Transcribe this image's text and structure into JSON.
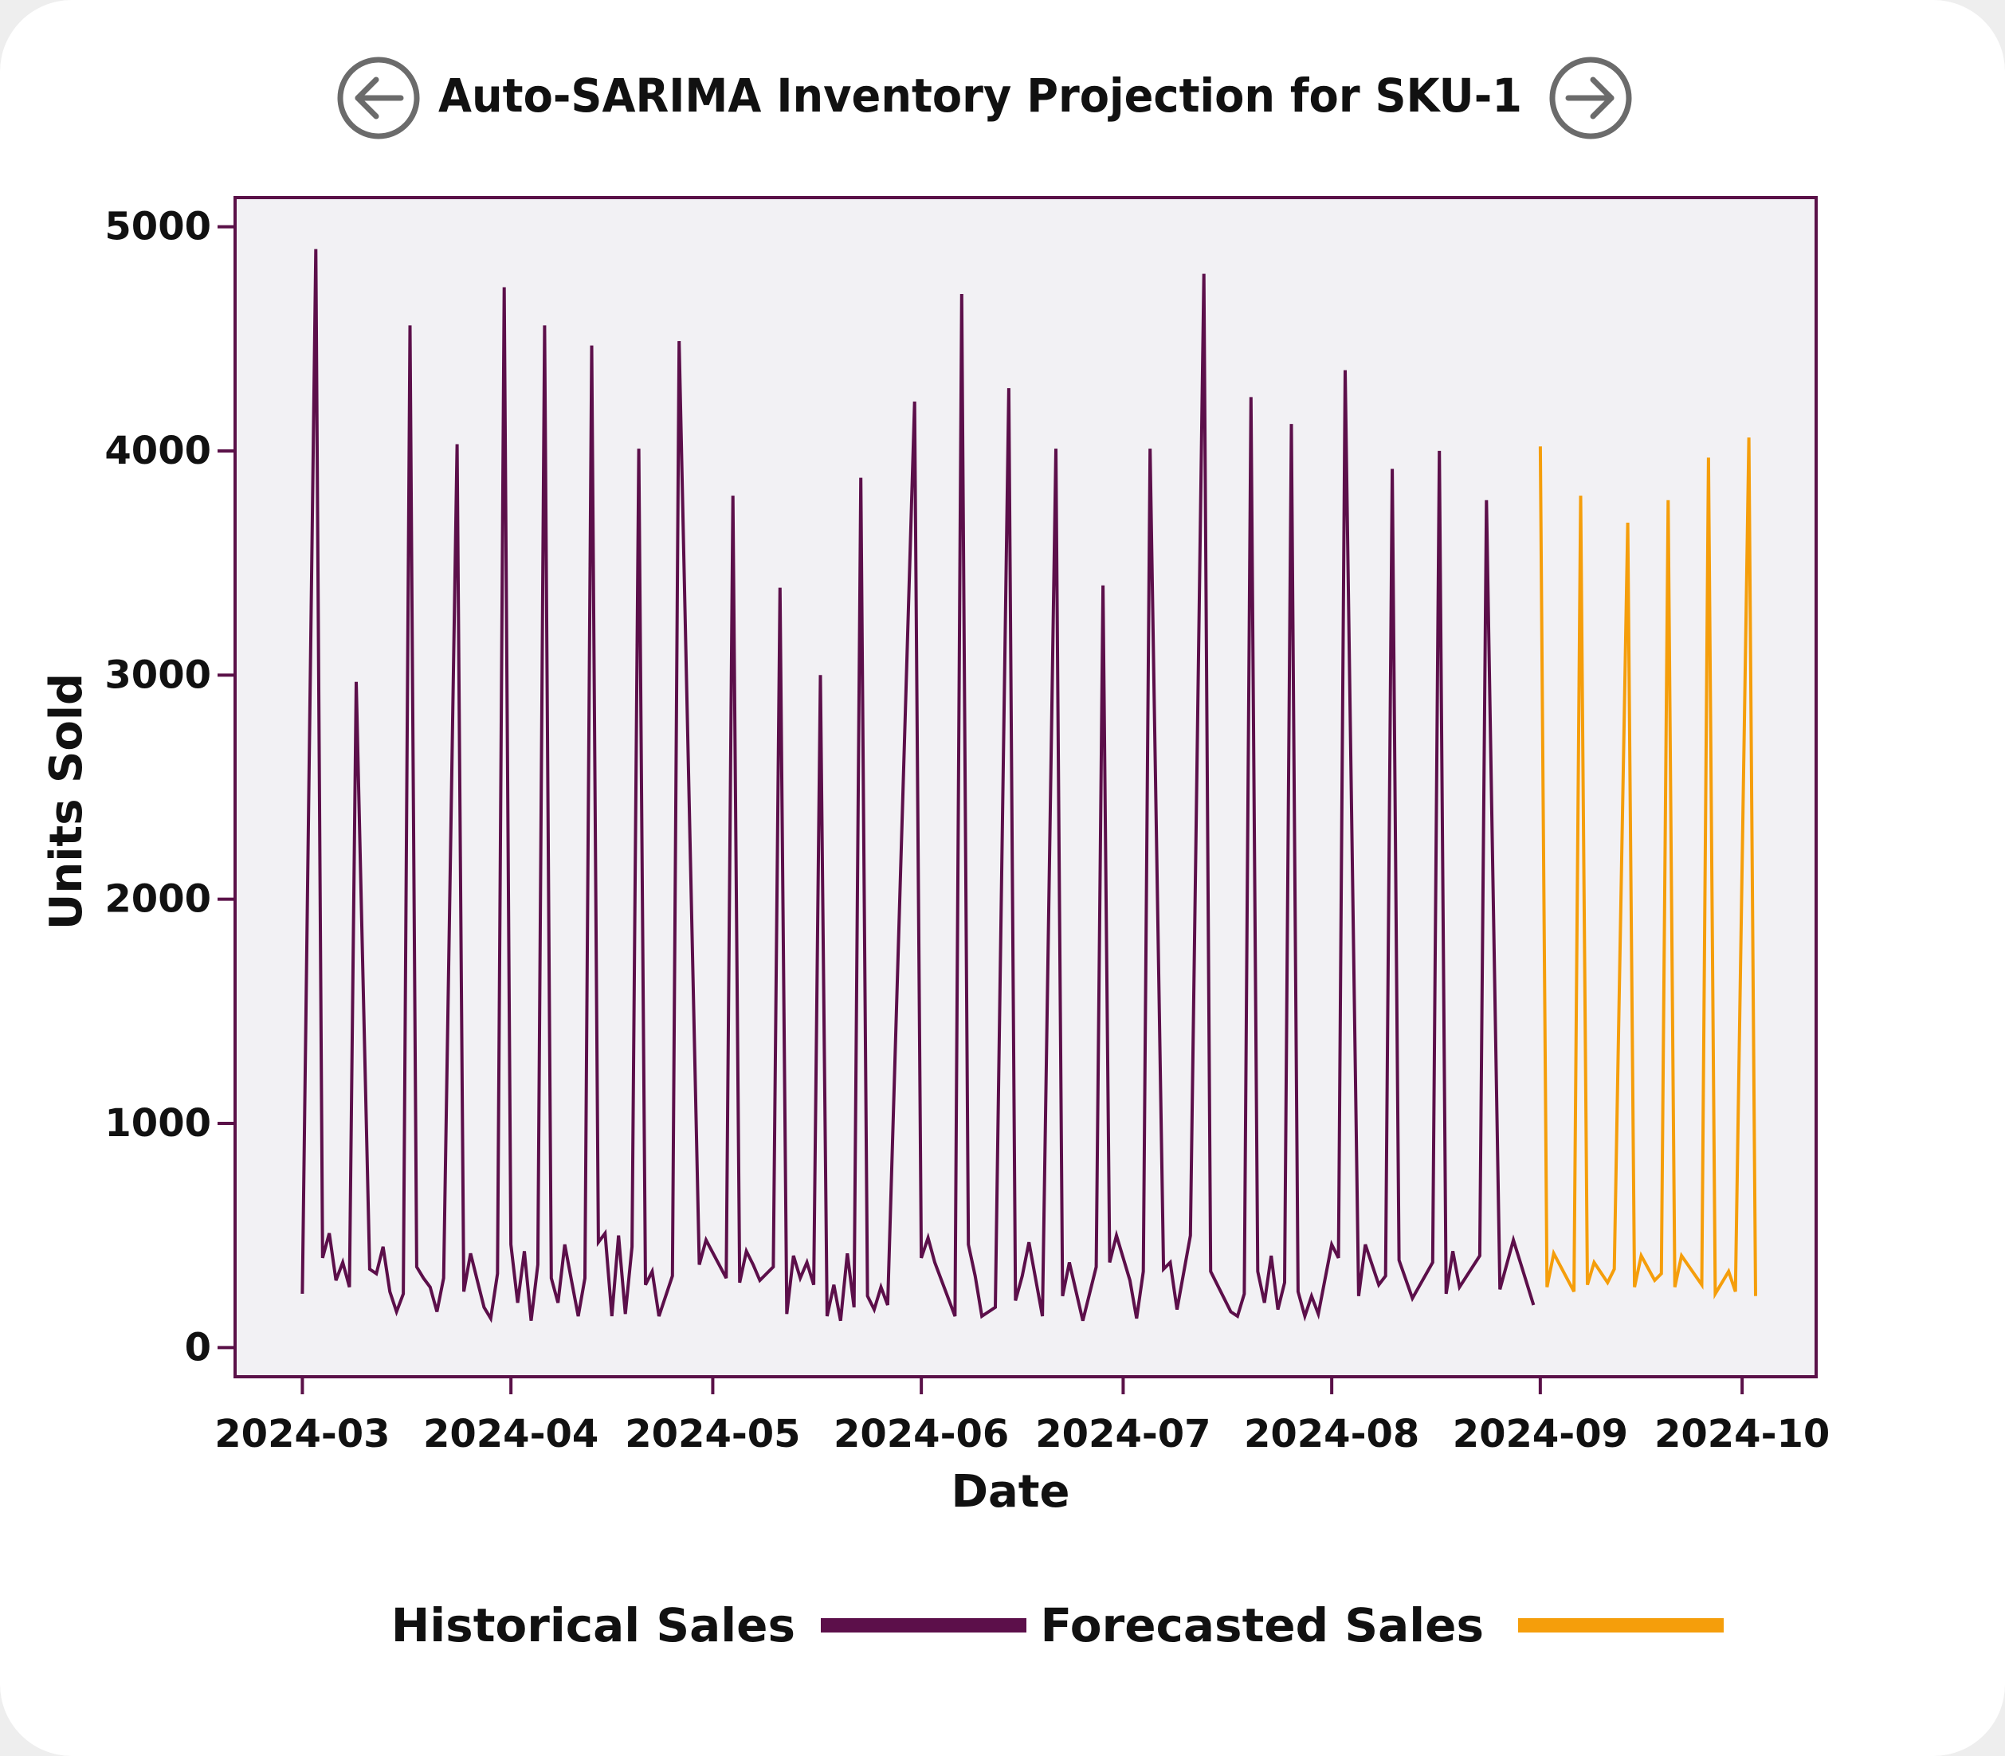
{
  "nav": {
    "prev_icon": "arrow-left-circle-icon",
    "next_icon": "arrow-right-circle-icon"
  },
  "colors": {
    "plot_bg": "#f2f1f4",
    "frame": "#5a1148",
    "historical": "#5c0f4a",
    "forecast": "#f59e0b"
  },
  "chart_data": {
    "type": "line",
    "title": "Auto-SARIMA Inventory Projection for SKU-1",
    "xlabel": "Date",
    "ylabel": "Units Sold",
    "ylim": [
      -130,
      5130
    ],
    "xlim": [
      "2024-02-20",
      "2024-10-12"
    ],
    "yticks": [
      0,
      1000,
      2000,
      3000,
      4000,
      5000
    ],
    "xticks": [
      "2024-03-01",
      "2024-04-01",
      "2024-05-01",
      "2024-06-01",
      "2024-07-01",
      "2024-08-01",
      "2024-09-01",
      "2024-10-01"
    ],
    "xtick_labels": [
      "2024-03",
      "2024-04",
      "2024-05",
      "2024-06",
      "2024-07",
      "2024-08",
      "2024-09",
      "2024-10"
    ],
    "grid": false,
    "legend": "bottom",
    "series": [
      {
        "name": "Historical Sales",
        "color": "#5c0f4a",
        "points": [
          [
            "2024-03-01",
            240
          ],
          [
            "2024-03-03",
            4900
          ],
          [
            "2024-03-04",
            400
          ],
          [
            "2024-03-05",
            510
          ],
          [
            "2024-03-06",
            300
          ],
          [
            "2024-03-07",
            380
          ],
          [
            "2024-03-08",
            270
          ],
          [
            "2024-03-09",
            2970
          ],
          [
            "2024-03-11",
            350
          ],
          [
            "2024-03-12",
            330
          ],
          [
            "2024-03-13",
            450
          ],
          [
            "2024-03-14",
            250
          ],
          [
            "2024-03-15",
            160
          ],
          [
            "2024-03-16",
            240
          ],
          [
            "2024-03-17",
            4560
          ],
          [
            "2024-03-18",
            360
          ],
          [
            "2024-03-19",
            310
          ],
          [
            "2024-03-20",
            270
          ],
          [
            "2024-03-21",
            160
          ],
          [
            "2024-03-22",
            310
          ],
          [
            "2024-03-24",
            4030
          ],
          [
            "2024-03-25",
            250
          ],
          [
            "2024-03-26",
            420
          ],
          [
            "2024-03-27",
            300
          ],
          [
            "2024-03-28",
            180
          ],
          [
            "2024-03-29",
            130
          ],
          [
            "2024-03-30",
            330
          ],
          [
            "2024-03-31",
            4730
          ],
          [
            "2024-04-01",
            460
          ],
          [
            "2024-04-02",
            200
          ],
          [
            "2024-04-03",
            430
          ],
          [
            "2024-04-04",
            120
          ],
          [
            "2024-04-05",
            370
          ],
          [
            "2024-04-06",
            4560
          ],
          [
            "2024-04-07",
            310
          ],
          [
            "2024-04-08",
            200
          ],
          [
            "2024-04-09",
            460
          ],
          [
            "2024-04-10",
            300
          ],
          [
            "2024-04-11",
            140
          ],
          [
            "2024-04-12",
            310
          ],
          [
            "2024-04-13",
            4470
          ],
          [
            "2024-04-14",
            470
          ],
          [
            "2024-04-15",
            510
          ],
          [
            "2024-04-16",
            140
          ],
          [
            "2024-04-17",
            500
          ],
          [
            "2024-04-18",
            150
          ],
          [
            "2024-04-19",
            450
          ],
          [
            "2024-04-20",
            4010
          ],
          [
            "2024-04-21",
            280
          ],
          [
            "2024-04-22",
            340
          ],
          [
            "2024-04-23",
            140
          ],
          [
            "2024-04-25",
            320
          ],
          [
            "2024-04-26",
            4490
          ],
          [
            "2024-04-29",
            370
          ],
          [
            "2024-04-30",
            480
          ],
          [
            "2024-05-03",
            310
          ],
          [
            "2024-05-04",
            3800
          ],
          [
            "2024-05-05",
            290
          ],
          [
            "2024-05-06",
            430
          ],
          [
            "2024-05-07",
            370
          ],
          [
            "2024-05-08",
            300
          ],
          [
            "2024-05-10",
            360
          ],
          [
            "2024-05-11",
            3390
          ],
          [
            "2024-05-12",
            150
          ],
          [
            "2024-05-13",
            410
          ],
          [
            "2024-05-14",
            310
          ],
          [
            "2024-05-15",
            380
          ],
          [
            "2024-05-16",
            280
          ],
          [
            "2024-05-17",
            3000
          ],
          [
            "2024-05-18",
            140
          ],
          [
            "2024-05-19",
            280
          ],
          [
            "2024-05-20",
            120
          ],
          [
            "2024-05-21",
            420
          ],
          [
            "2024-05-22",
            180
          ],
          [
            "2024-05-23",
            3880
          ],
          [
            "2024-05-24",
            230
          ],
          [
            "2024-05-25",
            170
          ],
          [
            "2024-05-26",
            270
          ],
          [
            "2024-05-27",
            190
          ],
          [
            "2024-05-31",
            4220
          ],
          [
            "2024-06-01",
            400
          ],
          [
            "2024-06-02",
            490
          ],
          [
            "2024-06-03",
            380
          ],
          [
            "2024-06-06",
            140
          ],
          [
            "2024-06-07",
            4700
          ],
          [
            "2024-06-08",
            460
          ],
          [
            "2024-06-09",
            320
          ],
          [
            "2024-06-10",
            140
          ],
          [
            "2024-06-12",
            180
          ],
          [
            "2024-06-14",
            4280
          ],
          [
            "2024-06-15",
            210
          ],
          [
            "2024-06-16",
            320
          ],
          [
            "2024-06-17",
            470
          ],
          [
            "2024-06-19",
            140
          ],
          [
            "2024-06-21",
            4010
          ],
          [
            "2024-06-22",
            230
          ],
          [
            "2024-06-23",
            380
          ],
          [
            "2024-06-25",
            120
          ],
          [
            "2024-06-26",
            240
          ],
          [
            "2024-06-27",
            360
          ],
          [
            "2024-06-28",
            3400
          ],
          [
            "2024-06-29",
            380
          ],
          [
            "2024-06-30",
            500
          ],
          [
            "2024-07-02",
            300
          ],
          [
            "2024-07-03",
            130
          ],
          [
            "2024-07-04",
            340
          ],
          [
            "2024-07-05",
            4010
          ],
          [
            "2024-07-07",
            350
          ],
          [
            "2024-07-08",
            380
          ],
          [
            "2024-07-09",
            170
          ],
          [
            "2024-07-11",
            500
          ],
          [
            "2024-07-13",
            4790
          ],
          [
            "2024-07-14",
            340
          ],
          [
            "2024-07-17",
            160
          ],
          [
            "2024-07-18",
            140
          ],
          [
            "2024-07-19",
            240
          ],
          [
            "2024-07-20",
            4240
          ],
          [
            "2024-07-21",
            340
          ],
          [
            "2024-07-22",
            200
          ],
          [
            "2024-07-23",
            410
          ],
          [
            "2024-07-24",
            170
          ],
          [
            "2024-07-25",
            290
          ],
          [
            "2024-07-26",
            4120
          ],
          [
            "2024-07-27",
            250
          ],
          [
            "2024-07-28",
            140
          ],
          [
            "2024-07-29",
            230
          ],
          [
            "2024-07-30",
            150
          ],
          [
            "2024-08-01",
            460
          ],
          [
            "2024-08-02",
            400
          ],
          [
            "2024-08-03",
            4360
          ],
          [
            "2024-08-05",
            230
          ],
          [
            "2024-08-06",
            460
          ],
          [
            "2024-08-08",
            280
          ],
          [
            "2024-08-09",
            320
          ],
          [
            "2024-08-10",
            3920
          ],
          [
            "2024-08-11",
            390
          ],
          [
            "2024-08-13",
            220
          ],
          [
            "2024-08-16",
            380
          ],
          [
            "2024-08-17",
            4000
          ],
          [
            "2024-08-18",
            240
          ],
          [
            "2024-08-19",
            430
          ],
          [
            "2024-08-20",
            270
          ],
          [
            "2024-08-23",
            410
          ],
          [
            "2024-08-24",
            3780
          ],
          [
            "2024-08-26",
            260
          ],
          [
            "2024-08-28",
            480
          ],
          [
            "2024-08-31",
            190
          ]
        ]
      },
      {
        "name": "Forecasted Sales",
        "color": "#f59e0b",
        "points": [
          [
            "2024-09-01",
            4020
          ],
          [
            "2024-09-02",
            270
          ],
          [
            "2024-09-03",
            420
          ],
          [
            "2024-09-06",
            250
          ],
          [
            "2024-09-07",
            3800
          ],
          [
            "2024-09-08",
            280
          ],
          [
            "2024-09-09",
            380
          ],
          [
            "2024-09-11",
            290
          ],
          [
            "2024-09-12",
            350
          ],
          [
            "2024-09-14",
            3680
          ],
          [
            "2024-09-15",
            270
          ],
          [
            "2024-09-16",
            410
          ],
          [
            "2024-09-18",
            300
          ],
          [
            "2024-09-19",
            330
          ],
          [
            "2024-09-20",
            3780
          ],
          [
            "2024-09-21",
            270
          ],
          [
            "2024-09-22",
            410
          ],
          [
            "2024-09-25",
            280
          ],
          [
            "2024-09-26",
            3970
          ],
          [
            "2024-09-27",
            240
          ],
          [
            "2024-09-29",
            340
          ],
          [
            "2024-09-30",
            250
          ],
          [
            "2024-10-02",
            4060
          ],
          [
            "2024-10-03",
            230
          ]
        ]
      }
    ]
  }
}
